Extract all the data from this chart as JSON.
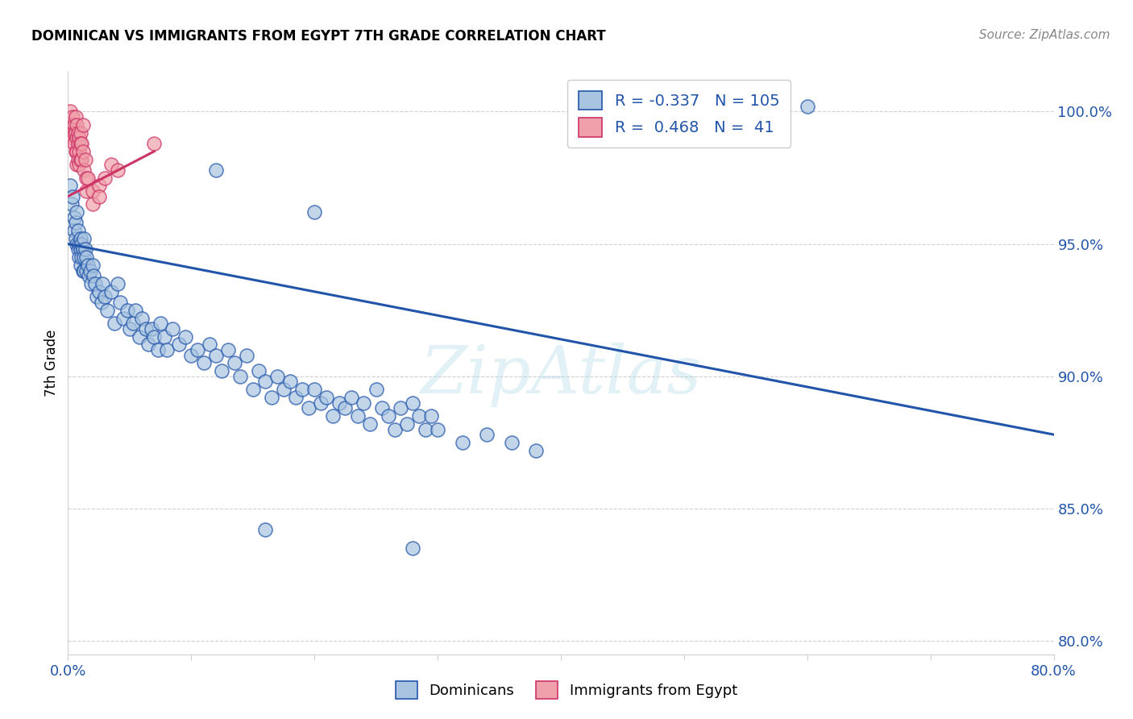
{
  "title": "DOMINICAN VS IMMIGRANTS FROM EGYPT 7TH GRADE CORRELATION CHART",
  "source": "Source: ZipAtlas.com",
  "ylabel": "7th Grade",
  "yticks": [
    80.0,
    85.0,
    90.0,
    95.0,
    100.0
  ],
  "ytick_labels": [
    "80.0%",
    "85.0%",
    "90.0%",
    "95.0%",
    "100.0%"
  ],
  "watermark": "ZipAtlas",
  "blue_color": "#A8C4E0",
  "pink_color": "#F0A0AA",
  "blue_line_color": "#2255AA",
  "pink_line_color": "#CC3366",
  "dominicans_label": "Dominicans",
  "egypt_label": "Immigrants from Egypt",
  "blue_scatter": [
    [
      0.002,
      97.2
    ],
    [
      0.003,
      96.5
    ],
    [
      0.004,
      96.8
    ],
    [
      0.005,
      96.0
    ],
    [
      0.005,
      95.5
    ],
    [
      0.006,
      95.8
    ],
    [
      0.006,
      95.2
    ],
    [
      0.007,
      96.2
    ],
    [
      0.007,
      95.0
    ],
    [
      0.008,
      95.5
    ],
    [
      0.008,
      94.8
    ],
    [
      0.009,
      95.0
    ],
    [
      0.009,
      94.5
    ],
    [
      0.01,
      95.2
    ],
    [
      0.01,
      94.8
    ],
    [
      0.01,
      94.2
    ],
    [
      0.011,
      95.0
    ],
    [
      0.011,
      94.5
    ],
    [
      0.012,
      94.8
    ],
    [
      0.012,
      94.0
    ],
    [
      0.013,
      95.2
    ],
    [
      0.013,
      94.5
    ],
    [
      0.013,
      94.0
    ],
    [
      0.014,
      94.8
    ],
    [
      0.015,
      94.5
    ],
    [
      0.015,
      94.0
    ],
    [
      0.016,
      94.2
    ],
    [
      0.017,
      93.8
    ],
    [
      0.018,
      94.0
    ],
    [
      0.019,
      93.5
    ],
    [
      0.02,
      94.2
    ],
    [
      0.021,
      93.8
    ],
    [
      0.022,
      93.5
    ],
    [
      0.023,
      93.0
    ],
    [
      0.025,
      93.2
    ],
    [
      0.027,
      92.8
    ],
    [
      0.028,
      93.5
    ],
    [
      0.03,
      93.0
    ],
    [
      0.032,
      92.5
    ],
    [
      0.035,
      93.2
    ],
    [
      0.038,
      92.0
    ],
    [
      0.04,
      93.5
    ],
    [
      0.042,
      92.8
    ],
    [
      0.045,
      92.2
    ],
    [
      0.048,
      92.5
    ],
    [
      0.05,
      91.8
    ],
    [
      0.053,
      92.0
    ],
    [
      0.055,
      92.5
    ],
    [
      0.058,
      91.5
    ],
    [
      0.06,
      92.2
    ],
    [
      0.063,
      91.8
    ],
    [
      0.065,
      91.2
    ],
    [
      0.068,
      91.8
    ],
    [
      0.07,
      91.5
    ],
    [
      0.073,
      91.0
    ],
    [
      0.075,
      92.0
    ],
    [
      0.078,
      91.5
    ],
    [
      0.08,
      91.0
    ],
    [
      0.085,
      91.8
    ],
    [
      0.09,
      91.2
    ],
    [
      0.095,
      91.5
    ],
    [
      0.1,
      90.8
    ],
    [
      0.105,
      91.0
    ],
    [
      0.11,
      90.5
    ],
    [
      0.115,
      91.2
    ],
    [
      0.12,
      90.8
    ],
    [
      0.125,
      90.2
    ],
    [
      0.13,
      91.0
    ],
    [
      0.135,
      90.5
    ],
    [
      0.14,
      90.0
    ],
    [
      0.145,
      90.8
    ],
    [
      0.15,
      89.5
    ],
    [
      0.155,
      90.2
    ],
    [
      0.16,
      89.8
    ],
    [
      0.165,
      89.2
    ],
    [
      0.17,
      90.0
    ],
    [
      0.175,
      89.5
    ],
    [
      0.18,
      89.8
    ],
    [
      0.185,
      89.2
    ],
    [
      0.19,
      89.5
    ],
    [
      0.195,
      88.8
    ],
    [
      0.2,
      89.5
    ],
    [
      0.205,
      89.0
    ],
    [
      0.21,
      89.2
    ],
    [
      0.215,
      88.5
    ],
    [
      0.22,
      89.0
    ],
    [
      0.225,
      88.8
    ],
    [
      0.23,
      89.2
    ],
    [
      0.235,
      88.5
    ],
    [
      0.24,
      89.0
    ],
    [
      0.245,
      88.2
    ],
    [
      0.25,
      89.5
    ],
    [
      0.255,
      88.8
    ],
    [
      0.26,
      88.5
    ],
    [
      0.265,
      88.0
    ],
    [
      0.27,
      88.8
    ],
    [
      0.275,
      88.2
    ],
    [
      0.28,
      89.0
    ],
    [
      0.285,
      88.5
    ],
    [
      0.29,
      88.0
    ],
    [
      0.295,
      88.5
    ],
    [
      0.3,
      88.0
    ],
    [
      0.32,
      87.5
    ],
    [
      0.34,
      87.8
    ],
    [
      0.36,
      87.5
    ],
    [
      0.38,
      87.2
    ],
    [
      0.6,
      100.2
    ],
    [
      0.12,
      97.8
    ],
    [
      0.2,
      96.2
    ],
    [
      0.16,
      84.2
    ],
    [
      0.28,
      83.5
    ]
  ],
  "pink_scatter": [
    [
      0.002,
      100.0
    ],
    [
      0.003,
      99.5
    ],
    [
      0.003,
      99.2
    ],
    [
      0.004,
      99.8
    ],
    [
      0.004,
      99.0
    ],
    [
      0.005,
      99.5
    ],
    [
      0.005,
      99.2
    ],
    [
      0.005,
      98.8
    ],
    [
      0.006,
      99.8
    ],
    [
      0.006,
      99.2
    ],
    [
      0.006,
      98.5
    ],
    [
      0.007,
      99.5
    ],
    [
      0.007,
      99.0
    ],
    [
      0.007,
      98.5
    ],
    [
      0.007,
      98.0
    ],
    [
      0.008,
      99.2
    ],
    [
      0.008,
      98.8
    ],
    [
      0.008,
      98.2
    ],
    [
      0.009,
      99.0
    ],
    [
      0.009,
      98.5
    ],
    [
      0.009,
      98.0
    ],
    [
      0.01,
      99.2
    ],
    [
      0.01,
      98.8
    ],
    [
      0.01,
      98.2
    ],
    [
      0.011,
      98.8
    ],
    [
      0.011,
      98.2
    ],
    [
      0.012,
      99.5
    ],
    [
      0.012,
      98.5
    ],
    [
      0.013,
      97.8
    ],
    [
      0.014,
      98.2
    ],
    [
      0.015,
      97.5
    ],
    [
      0.015,
      97.0
    ],
    [
      0.016,
      97.5
    ],
    [
      0.02,
      97.0
    ],
    [
      0.02,
      96.5
    ],
    [
      0.025,
      97.2
    ],
    [
      0.025,
      96.8
    ],
    [
      0.03,
      97.5
    ],
    [
      0.035,
      98.0
    ],
    [
      0.04,
      97.8
    ],
    [
      0.07,
      98.8
    ]
  ],
  "blue_line_x": [
    0.0,
    0.8
  ],
  "blue_line_y": [
    95.0,
    87.8
  ],
  "pink_line_x": [
    0.0,
    0.07
  ],
  "pink_line_y": [
    96.8,
    98.5
  ],
  "xlim": [
    0.0,
    0.8
  ],
  "ylim": [
    79.5,
    101.5
  ],
  "background_color": "#ffffff",
  "grid_color": "#d0d0d0"
}
